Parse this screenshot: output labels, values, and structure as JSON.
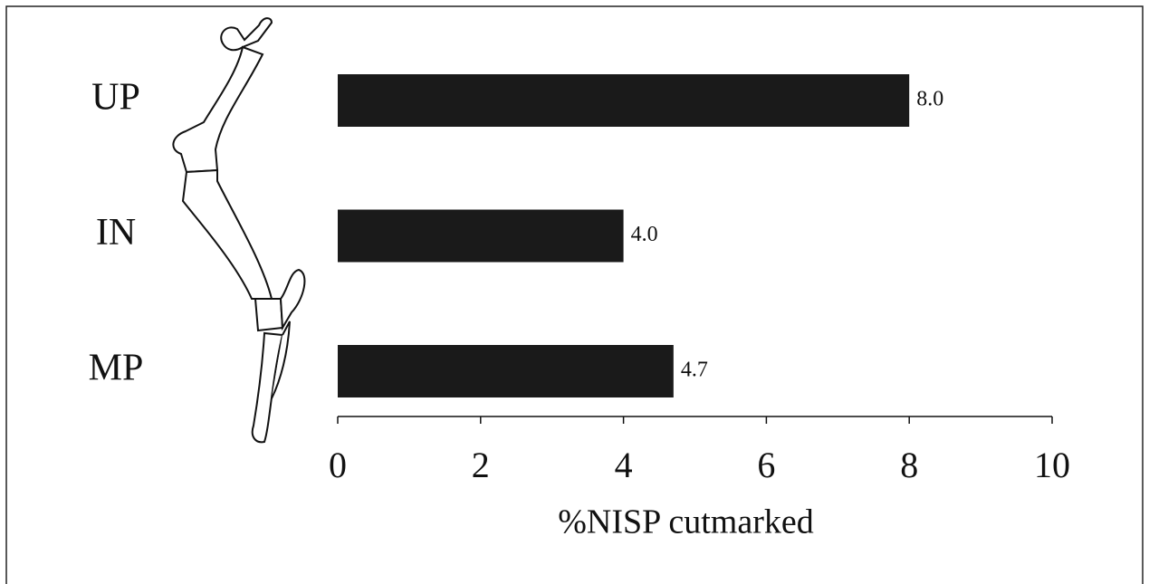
{
  "chart_data": {
    "type": "bar",
    "orientation": "horizontal",
    "categories": [
      "UP",
      "IN",
      "MP"
    ],
    "values": [
      8.0,
      4.0,
      4.7
    ],
    "value_labels": [
      "8.0",
      "4.0",
      "4.7"
    ],
    "color": "#1a1a1a",
    "xlim": [
      0,
      10
    ],
    "xticks": [
      0,
      2,
      4,
      6,
      8,
      10
    ],
    "xlabel": "%NISP cutmarked"
  }
}
